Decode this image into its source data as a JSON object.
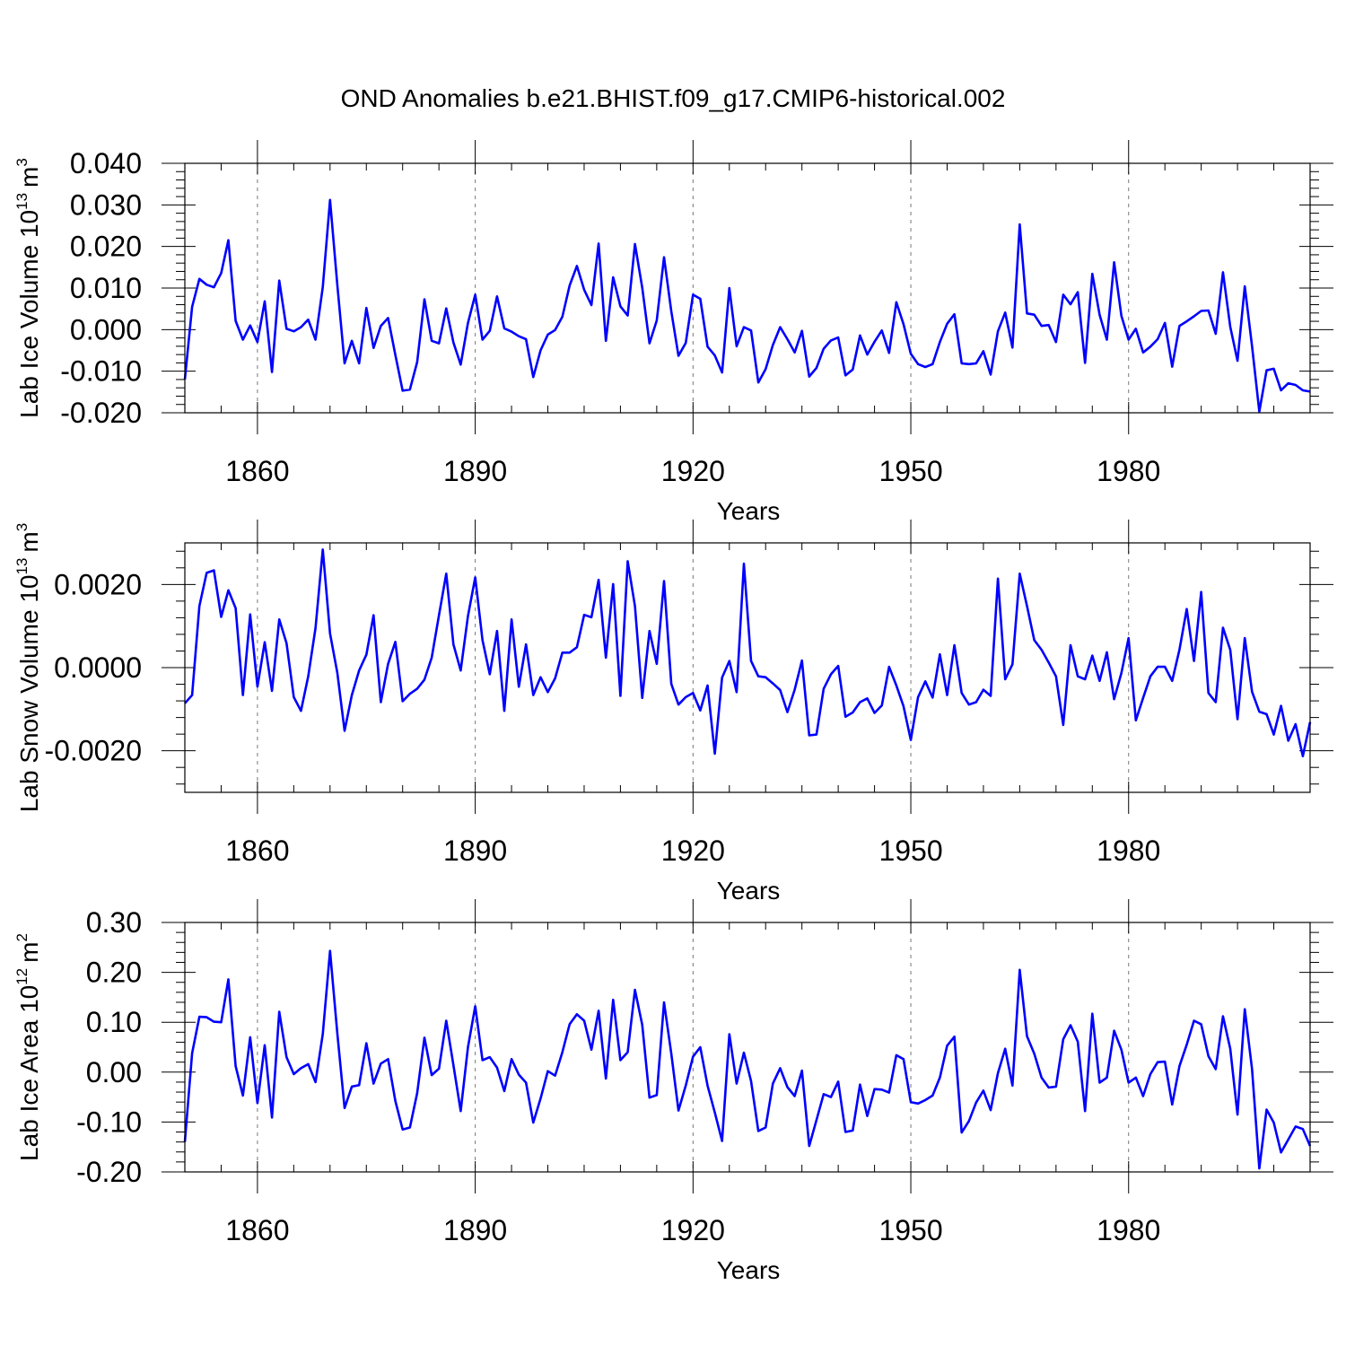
{
  "title": "OND Anomalies b.e21.BHIST.f09_g17.CMIP6-historical.002",
  "line_color": "#0000ff",
  "chart_data": [
    {
      "type": "line",
      "ylabel": "Lab Ice Volume 10",
      "ylabel_sup": "13",
      "ylabel_unit": "m",
      "ylabel_unit_sup": "3",
      "xlabel": "Years",
      "xlim": [
        1850,
        2005
      ],
      "ylim": [
        -0.02,
        0.04
      ],
      "xticks": [
        1860,
        1890,
        1920,
        1950,
        1980
      ],
      "yticks": [
        -0.02,
        -0.01,
        0.0,
        0.01,
        0.02,
        0.03,
        0.04
      ],
      "ytick_labels": [
        "-0.020",
        "-0.010",
        "0.000",
        "0.010",
        "0.020",
        "0.030",
        "0.040"
      ],
      "x_start": 1850,
      "values": [
        -0.012,
        0.0055,
        0.0122,
        0.0108,
        0.0102,
        0.0136,
        0.0215,
        0.0021,
        -0.0024,
        0.001,
        -0.003,
        0.0068,
        -0.0102,
        0.0118,
        0.0002,
        -0.0004,
        0.0006,
        0.0024,
        -0.0024,
        0.0102,
        0.0312,
        0.0108,
        -0.0081,
        -0.0027,
        -0.0081,
        0.0052,
        -0.0044,
        0.0009,
        0.0028,
        -0.0061,
        -0.0147,
        -0.0144,
        -0.0078,
        0.0073,
        -0.0027,
        -0.0033,
        0.0051,
        -0.0031,
        -0.0084,
        0.0016,
        0.0084,
        -0.0024,
        -0.0003,
        0.008,
        0.0003,
        -0.0005,
        -0.0016,
        -0.0023,
        -0.0114,
        -0.005,
        -0.0012,
        -0.0001,
        0.0031,
        0.0106,
        0.0153,
        0.0096,
        0.0059,
        0.0207,
        -0.0027,
        0.0126,
        0.0056,
        0.0034,
        0.0206,
        0.0101,
        -0.0033,
        0.0022,
        0.0174,
        0.0044,
        -0.0063,
        -0.0032,
        0.0084,
        0.0074,
        -0.0041,
        -0.0062,
        -0.0103,
        0.01,
        -0.004,
        0.0006,
        -0.0002,
        -0.0127,
        -0.0095,
        -0.0037,
        0.0006,
        -0.0023,
        -0.0055,
        -0.0003,
        -0.0113,
        -0.0092,
        -0.0046,
        -0.0026,
        -0.0019,
        -0.011,
        -0.0096,
        -0.0014,
        -0.006,
        -0.0029,
        -0.0002,
        -0.0056,
        0.0066,
        0.0013,
        -0.0058,
        -0.0083,
        -0.009,
        -0.0083,
        -0.003,
        0.0014,
        0.0037,
        -0.0081,
        -0.0083,
        -0.0081,
        -0.0052,
        -0.0108,
        -0.0004,
        0.0041,
        -0.0043,
        0.0253,
        0.0039,
        0.0036,
        0.0009,
        0.0011,
        -0.003,
        0.0084,
        0.0061,
        0.009,
        -0.008,
        0.0134,
        0.0036,
        -0.0024,
        0.0162,
        0.0033,
        -0.0024,
        0.0002,
        -0.0055,
        -0.0041,
        -0.0023,
        0.0016,
        -0.0089,
        0.0009,
        0.002,
        0.0032,
        0.0045,
        0.0046,
        -0.001,
        0.0138,
        0.0007,
        -0.0075,
        0.0104,
        -0.004,
        -0.0197,
        -0.0098,
        -0.0094,
        -0.0146,
        -0.0129,
        -0.0133,
        -0.0146,
        -0.0149
      ]
    },
    {
      "type": "line",
      "ylabel": "Lab Snow Volume 10",
      "ylabel_sup": "13",
      "ylabel_unit": "m",
      "ylabel_unit_sup": "3",
      "xlabel": "Years",
      "xlim": [
        1850,
        2005
      ],
      "ylim": [
        -0.003,
        0.003
      ],
      "xticks": [
        1860,
        1890,
        1920,
        1950,
        1980
      ],
      "yticks": [
        -0.002,
        0.0,
        0.002
      ],
      "ytick_labels": [
        "-0.0020",
        "0.0000",
        "0.0020"
      ],
      "x_start": 1850,
      "values": [
        -0.00086,
        -0.00066,
        0.00148,
        0.00228,
        0.00234,
        0.00122,
        0.00186,
        0.00143,
        -0.00066,
        0.00128,
        -0.00046,
        0.00061,
        -0.00056,
        0.00116,
        0.00059,
        -0.00071,
        -0.00104,
        -0.00021,
        0.00095,
        0.00284,
        0.00082,
        -0.00012,
        -0.00152,
        -0.00066,
        -7e-05,
        0.00031,
        0.00126,
        -0.00083,
        9e-05,
        0.00062,
        -0.00081,
        -0.00063,
        -0.00051,
        -0.00029,
        0.00024,
        0.00126,
        0.00226,
        0.00056,
        -7e-05,
        0.00124,
        0.00217,
        0.00066,
        -0.00016,
        0.00088,
        -0.00104,
        0.00116,
        -0.00046,
        0.00056,
        -0.00066,
        -0.00023,
        -0.00059,
        -0.00026,
        0.00036,
        0.00036,
        0.00049,
        0.00127,
        0.00121,
        0.00211,
        0.00024,
        0.00201,
        -0.00068,
        0.00256,
        0.00148,
        -0.00073,
        0.00088,
        9e-05,
        0.00208,
        -0.00039,
        -0.00089,
        -0.00071,
        -0.00061,
        -0.00103,
        -0.00043,
        -0.00207,
        -0.00024,
        0.00016,
        -0.00059,
        0.0025,
        0.00016,
        -0.00021,
        -0.00023,
        -0.00038,
        -0.00054,
        -0.00107,
        -0.00053,
        0.00017,
        -0.00163,
        -0.00161,
        -0.00051,
        -0.00016,
        4e-05,
        -0.00118,
        -0.00108,
        -0.00083,
        -0.00074,
        -0.00109,
        -0.00091,
        2e-05,
        -0.00043,
        -0.00093,
        -0.00174,
        -0.00071,
        -0.00033,
        -0.00072,
        0.00032,
        -0.00066,
        0.00054,
        -0.00061,
        -0.00089,
        -0.00083,
        -0.00053,
        -0.00068,
        0.00214,
        -0.00028,
        8e-05,
        0.00226,
        0.00148,
        0.00066,
        0.00043,
        0.00012,
        -0.00021,
        -0.00138,
        0.00054,
        -0.00021,
        -0.00028,
        0.00029,
        -0.00032,
        0.00037,
        -0.00076,
        -0.00013,
        0.00071,
        -0.00127,
        -0.00073,
        -0.00021,
        2e-05,
        2e-05,
        -0.00032,
        0.00043,
        0.00141,
        0.00016,
        0.00182,
        -0.00061,
        -0.00083,
        0.00096,
        0.00043,
        -0.00124,
        0.00071,
        -0.00058,
        -0.00106,
        -0.00112,
        -0.00161,
        -0.00092,
        -0.00176,
        -0.00136,
        -0.00213,
        -0.00131
      ]
    },
    {
      "type": "line",
      "ylabel": "Lab Ice Area 10",
      "ylabel_sup": "12",
      "ylabel_unit": "m",
      "ylabel_unit_sup": "2",
      "xlabel": "Years",
      "xlim": [
        1850,
        2005
      ],
      "ylim": [
        -0.2,
        0.3
      ],
      "xticks": [
        1860,
        1890,
        1920,
        1950,
        1980
      ],
      "yticks": [
        -0.2,
        -0.1,
        0.0,
        0.1,
        0.2,
        0.3
      ],
      "ytick_labels": [
        "-0.20",
        "-0.10",
        "0.00",
        "0.10",
        "0.20",
        "0.30"
      ],
      "x_start": 1850,
      "values": [
        -0.14,
        0.038,
        0.111,
        0.11,
        0.101,
        0.1,
        0.186,
        0.012,
        -0.047,
        0.07,
        -0.062,
        0.054,
        -0.091,
        0.121,
        0.03,
        -0.004,
        0.008,
        0.016,
        -0.02,
        0.076,
        0.243,
        0.078,
        -0.072,
        -0.029,
        -0.026,
        0.058,
        -0.023,
        0.017,
        0.026,
        -0.058,
        -0.115,
        -0.111,
        -0.042,
        0.069,
        -0.006,
        0.007,
        0.103,
        0.014,
        -0.078,
        0.05,
        0.132,
        0.024,
        0.03,
        0.009,
        -0.038,
        0.026,
        -0.005,
        -0.021,
        -0.101,
        -0.053,
        0.002,
        -0.007,
        0.04,
        0.096,
        0.116,
        0.103,
        0.045,
        0.123,
        -0.013,
        0.145,
        0.024,
        0.04,
        0.165,
        0.095,
        -0.051,
        -0.046,
        0.14,
        0.037,
        -0.077,
        -0.027,
        0.031,
        0.05,
        -0.027,
        -0.081,
        -0.138,
        0.076,
        -0.023,
        0.039,
        -0.018,
        -0.118,
        -0.111,
        -0.023,
        0.008,
        -0.03,
        -0.048,
        0.003,
        -0.148,
        -0.096,
        -0.044,
        -0.05,
        -0.019,
        -0.12,
        -0.117,
        -0.025,
        -0.088,
        -0.034,
        -0.035,
        -0.041,
        0.034,
        0.026,
        -0.06,
        -0.063,
        -0.056,
        -0.047,
        -0.011,
        0.053,
        0.071,
        -0.121,
        -0.098,
        -0.061,
        -0.037,
        -0.076,
        -0.002,
        0.047,
        -0.027,
        0.205,
        0.072,
        0.037,
        -0.011,
        -0.031,
        -0.029,
        0.066,
        0.094,
        0.061,
        -0.078,
        0.117,
        -0.021,
        -0.011,
        0.083,
        0.045,
        -0.021,
        -0.011,
        -0.048,
        -0.004,
        0.02,
        0.021,
        -0.065,
        0.012,
        0.055,
        0.103,
        0.096,
        0.032,
        0.006,
        0.112,
        0.047,
        -0.085,
        0.126,
        0.006,
        -0.193,
        -0.075,
        -0.101,
        -0.161,
        -0.135,
        -0.109,
        -0.114,
        -0.148
      ]
    }
  ]
}
